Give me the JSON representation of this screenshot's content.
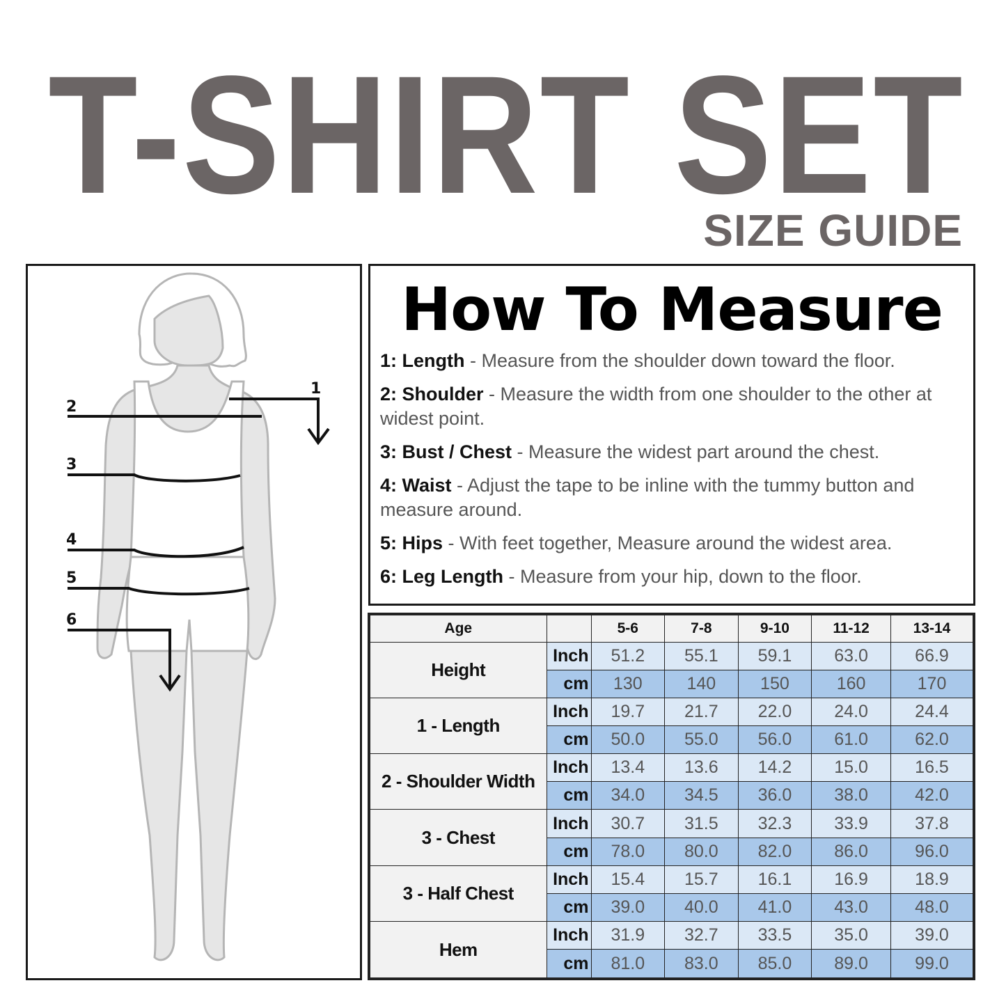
{
  "header": {
    "title": "T-SHIRT SET",
    "subtitle": "SIZE GUIDE"
  },
  "diagram": {
    "markers": [
      "1",
      "2",
      "3",
      "4",
      "5",
      "6"
    ]
  },
  "how_to_measure": {
    "title": "How To Measure",
    "items": [
      {
        "label": "1: Length",
        "text": " - Measure from the shoulder down toward the floor."
      },
      {
        "label": "2: Shoulder",
        "text": "  - Measure the width from one shoulder to the other at widest point."
      },
      {
        "label": "3: Bust / Chest",
        "text": " - Measure the widest part around the chest."
      },
      {
        "label": "4: Waist",
        "text": " - Adjust the tape to be inline with the tummy button and measure around."
      },
      {
        "label": "5: Hips",
        "text": " - With feet together, Measure around the widest area."
      },
      {
        "label": "6: Leg Length",
        "text": " - Measure from your hip, down to the floor."
      }
    ]
  },
  "size_table": {
    "header_label": "Age",
    "ages": [
      "5-6",
      "7-8",
      "9-10",
      "11-12",
      "13-14"
    ],
    "units": {
      "inch": "Inch",
      "cm": "cm"
    },
    "rows": [
      {
        "label": "Height",
        "inch": [
          "51.2",
          "55.1",
          "59.1",
          "63.0",
          "66.9"
        ],
        "cm": [
          "130",
          "140",
          "150",
          "160",
          "170"
        ]
      },
      {
        "label": "1 - Length",
        "inch": [
          "19.7",
          "21.7",
          "22.0",
          "24.0",
          "24.4"
        ],
        "cm": [
          "50.0",
          "55.0",
          "56.0",
          "61.0",
          "62.0"
        ]
      },
      {
        "label": "2 - Shoulder Width",
        "inch": [
          "13.4",
          "13.6",
          "14.2",
          "15.0",
          "16.5"
        ],
        "cm": [
          "34.0",
          "34.5",
          "36.0",
          "38.0",
          "42.0"
        ]
      },
      {
        "label": "3 - Chest",
        "inch": [
          "30.7",
          "31.5",
          "32.3",
          "33.9",
          "37.8"
        ],
        "cm": [
          "78.0",
          "80.0",
          "82.0",
          "86.0",
          "96.0"
        ]
      },
      {
        "label": "3 - Half Chest",
        "inch": [
          "15.4",
          "15.7",
          "16.1",
          "16.9",
          "18.9"
        ],
        "cm": [
          "39.0",
          "40.0",
          "41.0",
          "43.0",
          "48.0"
        ]
      },
      {
        "label": "Hem",
        "inch": [
          "31.9",
          "32.7",
          "33.5",
          "35.0",
          "39.0"
        ],
        "cm": [
          "81.0",
          "83.0",
          "85.0",
          "89.0",
          "99.0"
        ]
      }
    ]
  },
  "colors": {
    "title": "#6b6565",
    "inch_row": "#dbe8f6",
    "cm_row": "#a9c8ea",
    "header_bg": "#f2f2f2"
  }
}
